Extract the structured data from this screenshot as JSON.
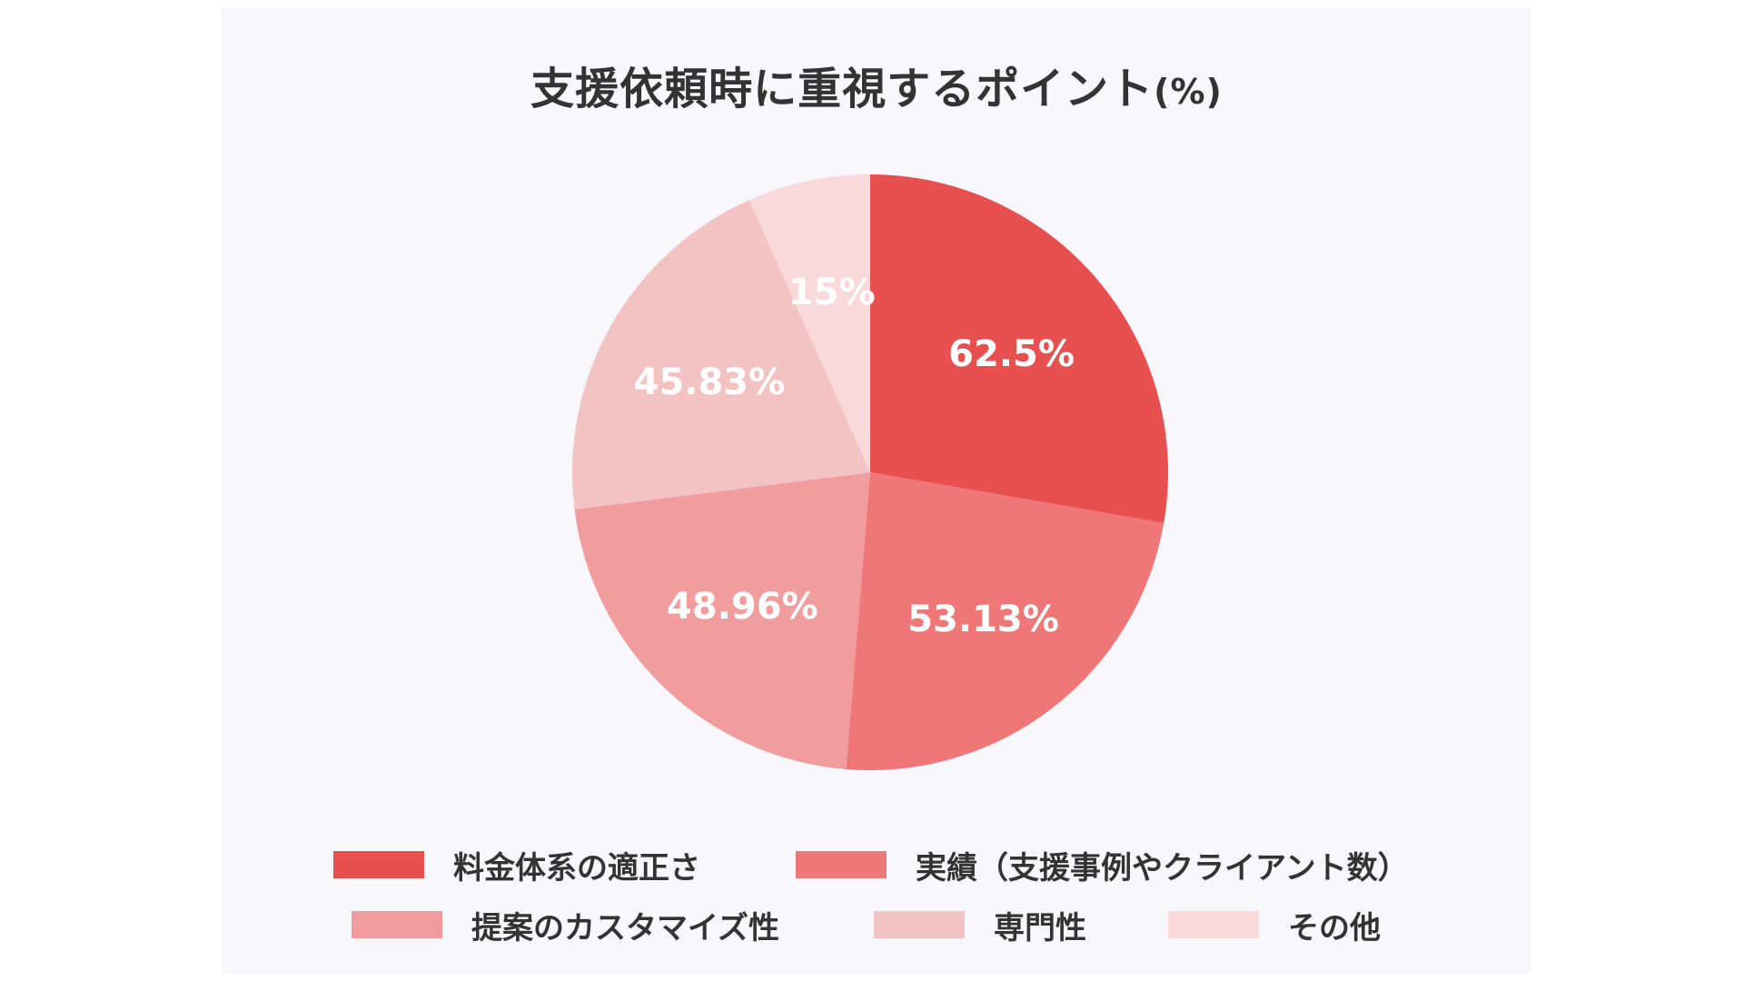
{
  "chart_data": {
    "type": "pie",
    "title": "支援依頼時に重視するポイント",
    "title_unit": "(%)",
    "slices": [
      {
        "name": "料金体系の適正さ",
        "value": 62.5,
        "label": "62.5%",
        "color": "#e85050"
      },
      {
        "name": "実績（支援事例やクライアント数）",
        "value": 53.13,
        "label": "53.13%",
        "color": "#ef7777"
      },
      {
        "name": "提案のカスタマイズ性",
        "value": 48.96,
        "label": "48.96%",
        "color": "#f29d9d"
      },
      {
        "name": "専門性",
        "value": 45.83,
        "label": "45.83%",
        "color": "#f3c3c3"
      },
      {
        "name": "その他",
        "value": 15,
        "label": "15%",
        "color": "#f9d9d9"
      }
    ],
    "legend_position": "bottom"
  }
}
